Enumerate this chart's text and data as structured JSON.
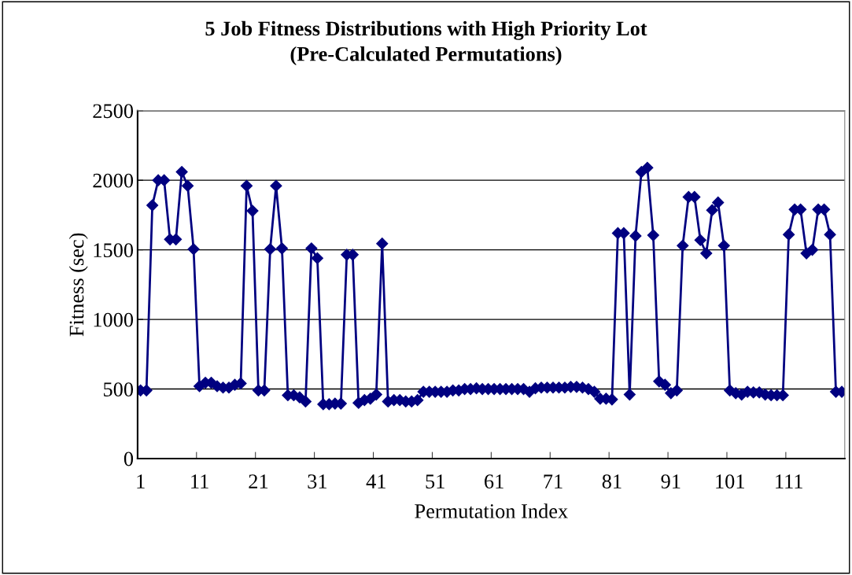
{
  "chart_data": {
    "type": "line",
    "title": "5 Job Fitness Distributions with High Priority Lot\n(Pre-Calculated Permutations)",
    "xlabel": "Permutation Index",
    "ylabel": "Fitness (sec)",
    "categories": [
      "1",
      null,
      null,
      null,
      null,
      null,
      null,
      null,
      null,
      null,
      "11",
      null,
      null,
      null,
      null,
      null,
      null,
      null,
      null,
      null,
      "21",
      null,
      null,
      null,
      null,
      null,
      null,
      null,
      null,
      null,
      "31",
      null,
      null,
      null,
      null,
      null,
      null,
      null,
      null,
      null,
      "41",
      null,
      null,
      null,
      null,
      null,
      null,
      null,
      null,
      null,
      "51",
      null,
      null,
      null,
      null,
      null,
      null,
      null,
      null,
      null,
      "61",
      null,
      null,
      null,
      null,
      null,
      null,
      null,
      null,
      null,
      "71",
      null,
      null,
      null,
      null,
      null,
      null,
      null,
      null,
      null,
      "81",
      null,
      null,
      null,
      null,
      null,
      null,
      null,
      null,
      null,
      "91",
      null,
      null,
      null,
      null,
      null,
      null,
      null,
      null,
      null,
      "101",
      null,
      null,
      null,
      null,
      null,
      null,
      null,
      null,
      null,
      "111",
      null,
      null,
      null,
      null,
      null,
      null,
      null,
      null,
      null
    ],
    "series": [
      {
        "color": "#000080",
        "values": [
          490,
          490,
          1820,
          2000,
          2000,
          1575,
          1575,
          2060,
          1960,
          1505,
          520,
          545,
          545,
          520,
          510,
          510,
          530,
          540,
          1960,
          1780,
          490,
          490,
          1505,
          1960,
          1510,
          455,
          455,
          440,
          410,
          1510,
          1440,
          390,
          390,
          395,
          395,
          1465,
          1465,
          400,
          420,
          430,
          460,
          1545,
          410,
          420,
          420,
          410,
          410,
          420,
          480,
          480,
          480,
          480,
          480,
          490,
          490,
          500,
          500,
          505,
          500,
          500,
          500,
          500,
          500,
          500,
          500,
          500,
          480,
          505,
          510,
          510,
          510,
          510,
          510,
          515,
          515,
          510,
          500,
          480,
          430,
          430,
          425,
          1620,
          1620,
          460,
          1600,
          2060,
          2090,
          1605,
          555,
          530,
          470,
          490,
          1530,
          1880,
          1880,
          1570,
          1475,
          1785,
          1840,
          1530,
          490,
          470,
          460,
          480,
          475,
          475,
          460,
          455,
          455,
          455,
          1610,
          1790,
          1790,
          1475,
          1500,
          1790,
          1790,
          1610,
          480,
          480
        ]
      }
    ],
    "ylim": [
      0,
      2500
    ],
    "yticks": [
      0,
      500,
      1000,
      1500,
      2000,
      2500
    ],
    "grid": "y",
    "marker": "diamond",
    "line_style": "solid"
  }
}
